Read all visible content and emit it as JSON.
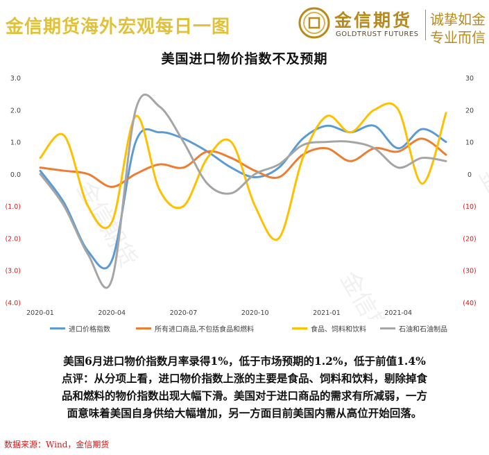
{
  "banner": {
    "title": "金信期货海外宏观每日一图",
    "logo_cn": "金信期货",
    "logo_en": "GOLDTRUST FUTURES",
    "slogan_line1": "诚挚如金",
    "slogan_line2": "专业而信",
    "logo_icon": "coin-icon",
    "colors": {
      "title": "#e0c23a",
      "brand": "#b88a1a"
    }
  },
  "chart_data": {
    "type": "line",
    "title": "美国进口物价指数不及预期",
    "x": [
      "2020-01",
      "2020-02",
      "2020-03",
      "2020-04",
      "2020-05",
      "2020-06",
      "2020-07",
      "2020-08",
      "2020-09",
      "2020-10",
      "2020-11",
      "2020-12",
      "2021-01",
      "2021-02",
      "2021-03",
      "2021-04",
      "2021-05",
      "2021-06"
    ],
    "x_tick_labels": [
      "2020-01",
      "2020-04",
      "2020-07",
      "2020-10",
      "2021-01",
      "2021-04"
    ],
    "left_axis": {
      "ylim": [
        -4,
        3
      ],
      "ticks": [
        "3.0",
        "2.0",
        "1.0",
        "0.0",
        "(1.0)",
        "(2.0)",
        "(3.0)",
        "(4.0)"
      ]
    },
    "right_axis": {
      "ylim": [
        -40,
        30
      ],
      "ticks": [
        "30",
        "20",
        "10",
        "0",
        "(10)",
        "(20)",
        "(30)",
        "(40)"
      ]
    },
    "series": [
      {
        "name": "进口价格指数",
        "axis": "left",
        "color": "#5b9bd5",
        "values": [
          0.1,
          -0.9,
          -2.4,
          -2.7,
          1.0,
          1.3,
          1.1,
          0.7,
          0.2,
          -0.1,
          0.2,
          1.1,
          1.5,
          1.3,
          1.5,
          0.8,
          1.4,
          1.0
        ]
      },
      {
        "name": "所有进口商品,不包括食品和燃料",
        "axis": "left",
        "color": "#ed7d31",
        "values": [
          0.2,
          0.1,
          0.0,
          -0.4,
          0.0,
          0.3,
          0.2,
          0.7,
          0.5,
          0.1,
          -0.1,
          0.6,
          0.8,
          0.4,
          0.8,
          0.7,
          1.1,
          0.6
        ]
      },
      {
        "name": "食品、饲料和饮料",
        "axis": "right",
        "color": "#ffc000",
        "values": [
          5,
          12,
          -10,
          -15,
          18,
          -5,
          -10,
          5,
          10,
          -10,
          -20,
          5,
          18,
          13,
          20,
          20,
          -3,
          19
        ]
      },
      {
        "name": "石油和石油制品",
        "axis": "right",
        "color": "#a5a5a5",
        "values": [
          0,
          -10,
          -25,
          -33,
          20,
          21,
          10,
          -3,
          -6,
          0,
          3,
          9,
          10,
          10,
          8,
          2,
          5,
          4
        ]
      }
    ],
    "legend_position": "bottom",
    "grid": false,
    "watermark": "金信期货"
  },
  "commentary": {
    "line1": "美国6月进口物价指数月率录得1%，低于市场预期的1.2%，低于前值1.4%",
    "line2": "点评：从分项上看，进口物价指数上涨的主要是食品、饲料和饮料，剔除掉食",
    "line3": "品和燃料的物价指数出现大幅下滑。美国对于进口商品的需求有所减弱，一方",
    "line4": "面意味着美国自身供给大幅增加，另一方面目前美国内需从高位开始回落。"
  },
  "source": "数据来源：Wind，金信期货"
}
